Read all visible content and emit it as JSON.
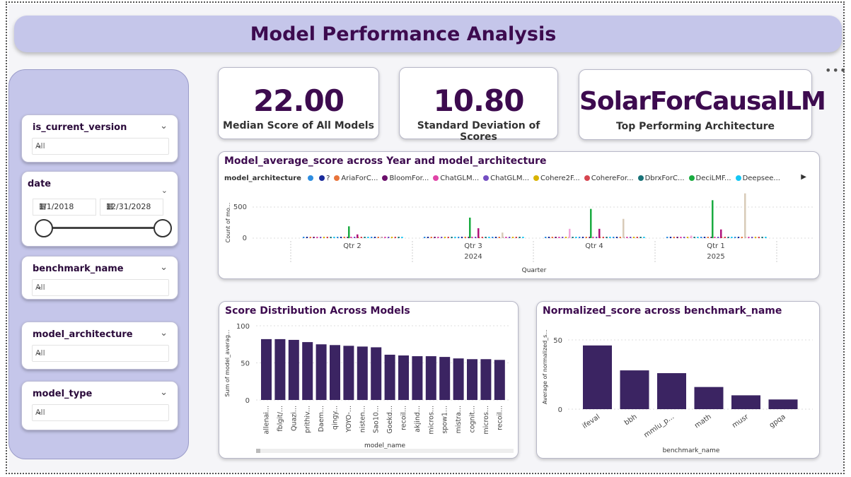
{
  "page": {
    "title": "Model Performance Analysis"
  },
  "filters": {
    "is_current_version": {
      "label": "is_current_version",
      "value": "All"
    },
    "date": {
      "label": "date",
      "start": "1/1/2018",
      "end": "12/31/2028"
    },
    "benchmark_name": {
      "label": "benchmark_name",
      "value": "All"
    },
    "model_architecture": {
      "label": "model_architecture",
      "value": "All"
    },
    "model_type": {
      "label": "model_type",
      "value": "All"
    }
  },
  "kpis": {
    "median": {
      "value": "22.00",
      "label": "Median Score of All Models"
    },
    "stddev": {
      "value": "10.80",
      "label": "Standard Deviation of Scores"
    },
    "top_arch": {
      "value": "SolarForCausalLM",
      "label": "Top Performing Architecture"
    }
  },
  "colors": {
    "bar": "#3b2462",
    "title": "#3d0b4f",
    "accent_bg": "#c5c6ea"
  },
  "chart_data": [
    {
      "type": "bar",
      "title": "Model_average_score across Year and model_architecture",
      "legend_title": "model_architecture",
      "legend": [
        {
          "name": "",
          "color": "#2e8de0"
        },
        {
          "name": "?",
          "color": "#1a2a9a"
        },
        {
          "name": "AriaForC...",
          "color": "#e8743b"
        },
        {
          "name": "BloomFor...",
          "color": "#6b0f6b"
        },
        {
          "name": "ChatGLM...",
          "color": "#e044a7"
        },
        {
          "name": "ChatGLM...",
          "color": "#744ec2"
        },
        {
          "name": "Cohere2F...",
          "color": "#d9b300"
        },
        {
          "name": "CohereFor...",
          "color": "#d64550"
        },
        {
          "name": "DbrxForC...",
          "color": "#197278"
        },
        {
          "name": "DeciLMF...",
          "color": "#1aab40"
        },
        {
          "name": "Deepsee...",
          "color": "#15c6f4"
        }
      ],
      "ylabel": "Count of mo...",
      "xlabel": "Quarter",
      "yticks": [
        "500",
        "0"
      ],
      "ylim": [
        0,
        750
      ],
      "categories": [
        "Qtr 2",
        "Qtr 3",
        "Qtr 4",
        "Qtr 1"
      ],
      "years": [
        {
          "label": "2024",
          "under": 1
        },
        {
          "label": "2025",
          "under": 3
        }
      ],
      "groups": [
        {
          "green": 190,
          "magenta": 60,
          "beige": 20
        },
        {
          "green": 330,
          "magenta": 160,
          "beige": 90
        },
        {
          "green": 470,
          "magenta": 150,
          "beige": 310,
          "pink": 150
        },
        {
          "green": 610,
          "magenta": 140,
          "beige": 720,
          "pink": 40
        }
      ]
    },
    {
      "type": "bar",
      "title": "Score Distribution Across Models",
      "ylabel": "Sum of model_averag...",
      "xlabel": "model_name",
      "ylim": [
        0,
        100
      ],
      "yticks": [
        "100",
        "50",
        "0"
      ],
      "categories": [
        "allenai...",
        "fblgit/...",
        "Quazi...",
        "prithiv...",
        "Daem...",
        "qingy...",
        "YOYO-...",
        "nisten...",
        "Sao10...",
        "Goekd...",
        "recoil...",
        "akjind...",
        "micros...",
        "spow1...",
        "mistra...",
        "cognit...",
        "micros...",
        "recoil..."
      ],
      "values": [
        82,
        82,
        81,
        78,
        75,
        74,
        73,
        72,
        71,
        61,
        60,
        59,
        59,
        58,
        56,
        55,
        55,
        54
      ]
    },
    {
      "type": "bar",
      "title": "Normalized_score across benchmark_name",
      "ylabel": "Average of normalized_s...",
      "xlabel": "benchmark_name",
      "ylim": [
        0,
        60
      ],
      "yticks": [
        "50",
        "0"
      ],
      "categories": [
        "ifeval",
        "bbh",
        "mmlu_p...",
        "math",
        "musr",
        "gpqa"
      ],
      "values": [
        46,
        28,
        26,
        16,
        10,
        7
      ]
    }
  ]
}
